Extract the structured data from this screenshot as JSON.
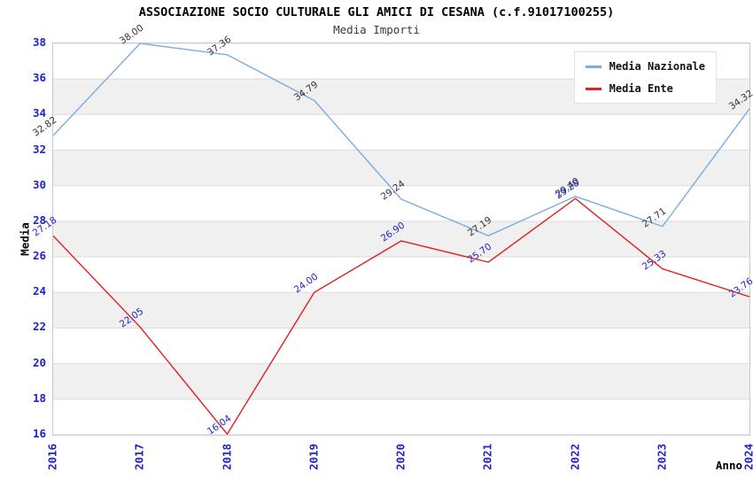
{
  "title": "ASSOCIAZIONE SOCIO CULTURALE GLI AMICI DI CESANA (c.f.91017100255)",
  "subtitle": "Media Importi",
  "chart_data": {
    "type": "line",
    "x": [
      2016,
      2017,
      2018,
      2019,
      2020,
      2021,
      2022,
      2023,
      2024
    ],
    "series": [
      {
        "name": "Media Nazionale",
        "color": "#79ade2",
        "label_color": "#333333",
        "values": [
          32.82,
          38.0,
          37.36,
          34.79,
          29.24,
          27.19,
          29.4,
          27.71,
          34.32
        ]
      },
      {
        "name": "Media Ente",
        "color": "#e02020",
        "label_color": "#2222cc",
        "values": [
          27.18,
          22.05,
          16.04,
          24.0,
          26.9,
          25.7,
          29.28,
          25.33,
          23.76
        ]
      }
    ],
    "xlabel": "Anno",
    "ylabel": "Media",
    "ylim": [
      16,
      38
    ],
    "yticks": [
      16,
      18,
      20,
      22,
      24,
      26,
      28,
      30,
      32,
      34,
      36,
      38
    ],
    "grid": true,
    "legend_position": "top-right",
    "band_colors": [
      "#ffffff",
      "#f0f0f0"
    ],
    "gridline_color": "#dddddd",
    "axis_tick_color": "#2121ce",
    "value_label_decimals": 2
  },
  "legend": {
    "items": [
      {
        "label": "Media Nazionale",
        "color": "#79ade2"
      },
      {
        "label": "Media Ente",
        "color": "#e02020"
      }
    ]
  }
}
